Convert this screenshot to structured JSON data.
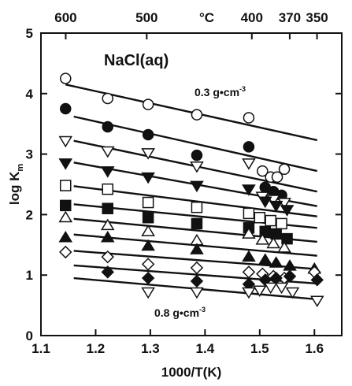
{
  "chart_data": {
    "type": "scatter",
    "title": "NaCl(aq)",
    "xlabel": "1000/T(K)",
    "ylabel": "log K",
    "ylabel_sub": "m",
    "top_axis_label": "°C",
    "xlim": [
      1.1,
      1.65
    ],
    "ylim": [
      0,
      5
    ],
    "x_ticks": [
      "1.1",
      "1.2",
      "1.3",
      "1.4",
      "1.5",
      "1.6"
    ],
    "y_ticks": [
      "0",
      "1",
      "2",
      "3",
      "4",
      "5"
    ],
    "top_ticks": [
      "600",
      "500",
      "400",
      "370",
      "350"
    ],
    "grid": false,
    "annotations": [
      "0.3 g•cm",
      "-3",
      "0.8 g•cm",
      "-3"
    ],
    "series": [
      {
        "marker": "circle-open",
        "x": [
          1.145,
          1.222,
          1.296,
          1.385,
          1.48,
          1.505,
          1.52,
          1.532,
          1.545
        ],
        "y": [
          4.25,
          3.92,
          3.82,
          3.65,
          3.6,
          2.72,
          2.62,
          2.62,
          2.75
        ],
        "fit": [
          [
            1.145,
            4.15
          ],
          [
            1.605,
            3.23
          ]
        ]
      },
      {
        "marker": "circle-filled",
        "x": [
          1.145,
          1.222,
          1.296,
          1.385,
          1.48,
          1.51,
          1.525,
          1.54
        ],
        "y": [
          3.75,
          3.45,
          3.32,
          2.98,
          3.12,
          2.45,
          2.38,
          2.32
        ],
        "fit": [
          [
            1.16,
            3.62
          ],
          [
            1.605,
            2.72
          ]
        ]
      },
      {
        "marker": "triangle-down-open",
        "x": [
          1.145,
          1.222,
          1.296,
          1.385,
          1.48,
          1.505,
          1.525,
          1.545
        ],
        "y": [
          3.22,
          3.05,
          3.02,
          2.8,
          2.85,
          2.3,
          2.25,
          2.2
        ],
        "fit": [
          [
            1.16,
            3.22
          ],
          [
            1.605,
            2.38
          ]
        ]
      },
      {
        "marker": "triangle-down-filled",
        "x": [
          1.145,
          1.222,
          1.296,
          1.385,
          1.48,
          1.51,
          1.53,
          1.55
        ],
        "y": [
          2.85,
          2.72,
          2.62,
          2.48,
          2.42,
          2.22,
          2.15,
          2.08
        ],
        "fit": [
          [
            1.16,
            2.86
          ],
          [
            1.605,
            2.14
          ]
        ]
      },
      {
        "marker": "square-open",
        "x": [
          1.145,
          1.222,
          1.296,
          1.385,
          1.48,
          1.5,
          1.52,
          1.54
        ],
        "y": [
          2.48,
          2.42,
          2.2,
          2.12,
          2.02,
          1.95,
          1.9,
          1.85
        ],
        "fit": [
          [
            1.16,
            2.47
          ],
          [
            1.605,
            1.97
          ]
        ]
      },
      {
        "marker": "square-filled",
        "x": [
          1.145,
          1.222,
          1.296,
          1.385,
          1.48,
          1.51,
          1.53,
          1.55
        ],
        "y": [
          2.15,
          2.1,
          1.95,
          1.85,
          1.78,
          1.72,
          1.68,
          1.6
        ],
        "fit": [
          [
            1.16,
            2.17
          ],
          [
            1.605,
            1.78
          ]
        ]
      },
      {
        "marker": "triangle-up-open",
        "x": [
          1.145,
          1.222,
          1.296,
          1.385,
          1.48,
          1.505,
          1.525,
          1.545
        ],
        "y": [
          1.95,
          1.82,
          1.72,
          1.57,
          1.68,
          1.58,
          1.52,
          1.45
        ],
        "fit": [
          [
            1.16,
            1.93
          ],
          [
            1.605,
            1.55
          ]
        ]
      },
      {
        "marker": "triangle-up-filled",
        "x": [
          1.145,
          1.222,
          1.296,
          1.385,
          1.48,
          1.51,
          1.53,
          1.555,
          1.6
        ],
        "y": [
          1.62,
          1.62,
          1.48,
          1.42,
          1.3,
          1.25,
          1.2,
          1.15,
          1.1
        ],
        "fit": [
          [
            1.16,
            1.67
          ],
          [
            1.605,
            1.32
          ]
        ]
      },
      {
        "marker": "diamond-open",
        "x": [
          1.145,
          1.222,
          1.296,
          1.385,
          1.48,
          1.505,
          1.525,
          1.545,
          1.6
        ],
        "y": [
          1.38,
          1.3,
          1.18,
          1.12,
          1.05,
          1.02,
          0.98,
          0.95,
          1.05
        ],
        "fit": [
          [
            1.16,
            1.4
          ],
          [
            1.605,
            1.1
          ]
        ]
      },
      {
        "marker": "diamond-filled",
        "x": [
          1.222,
          1.296,
          1.385,
          1.48,
          1.51,
          1.53,
          1.555,
          1.605
        ],
        "y": [
          1.05,
          0.95,
          0.9,
          0.85,
          0.92,
          0.95,
          0.98,
          0.92
        ],
        "fit": [
          [
            1.16,
            1.16
          ],
          [
            1.605,
            0.86
          ]
        ]
      },
      {
        "marker": "triangle-down-open",
        "x": [
          1.296,
          1.385,
          1.48,
          1.5,
          1.52,
          1.54,
          1.56,
          1.605
        ],
        "y": [
          0.72,
          0.72,
          0.72,
          0.75,
          0.8,
          0.8,
          0.72,
          0.58
        ],
        "fit": [
          [
            1.16,
            0.95
          ],
          [
            1.605,
            0.6
          ]
        ]
      }
    ]
  }
}
